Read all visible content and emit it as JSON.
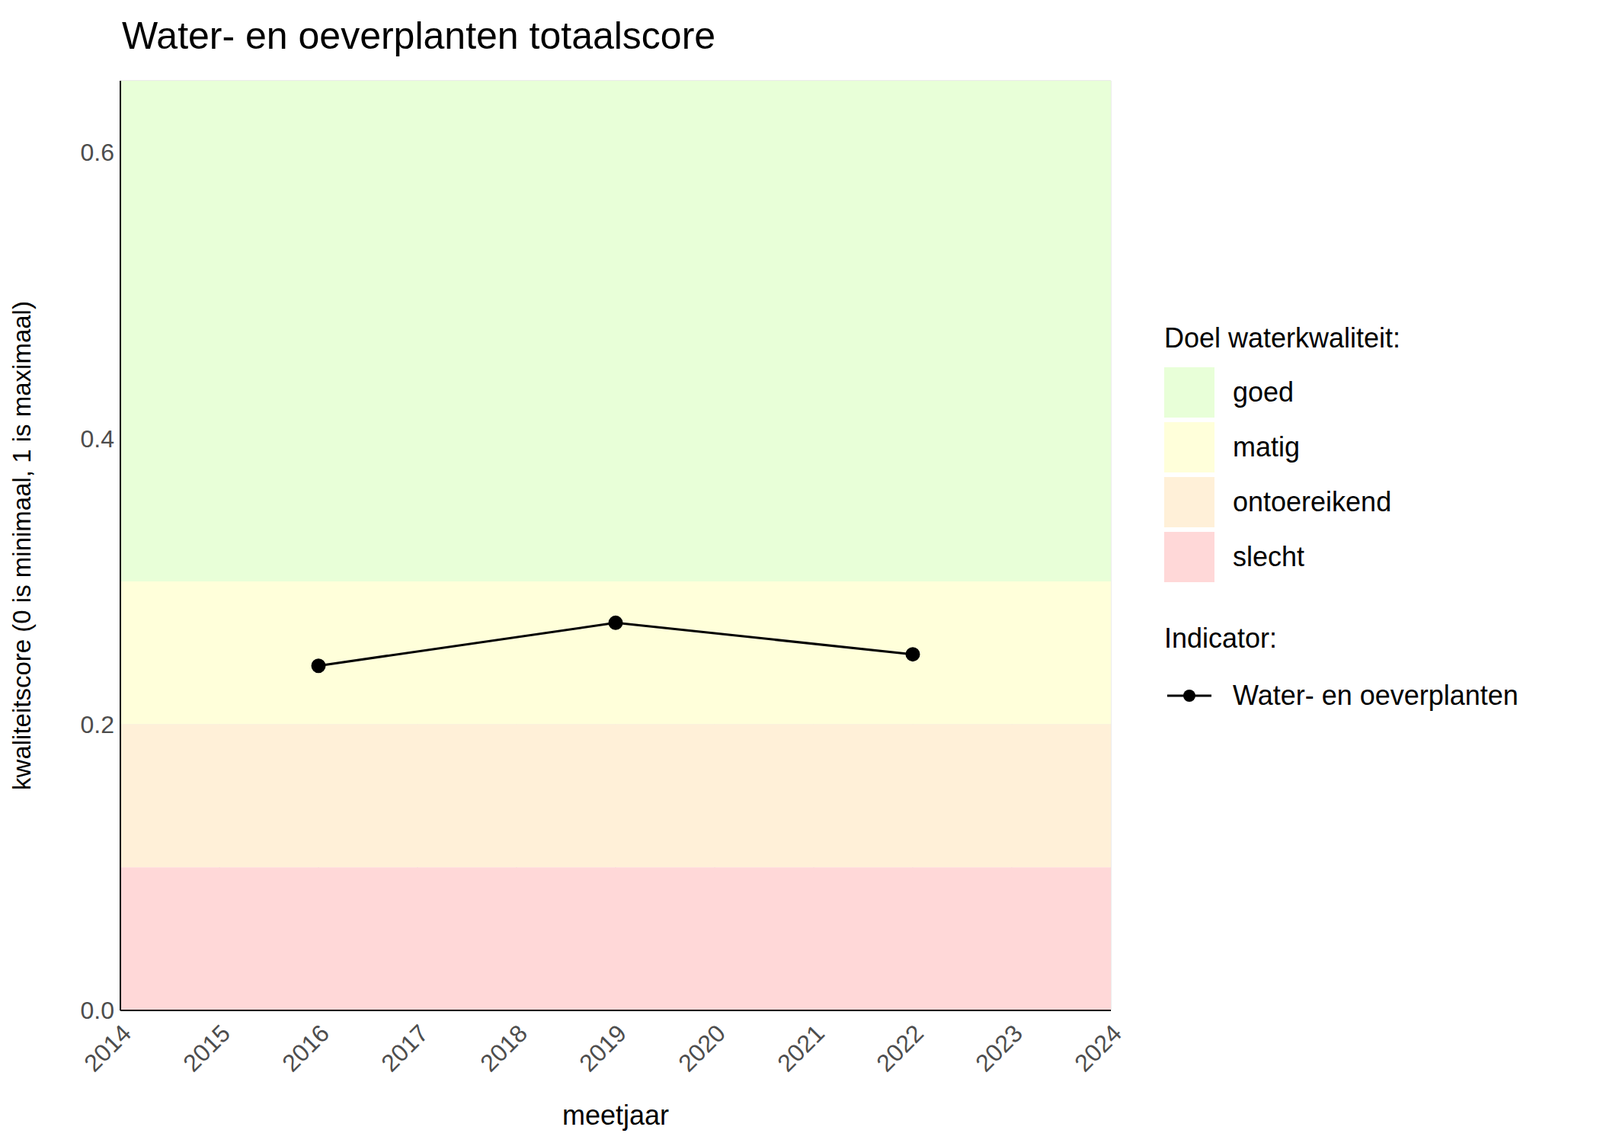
{
  "chart_data": {
    "type": "line",
    "title": "Water- en oeverplanten totaalscore",
    "x_label": "meetjaar",
    "y_label": "kwaliteitscore (0 is minimaal, 1 is maximaal)",
    "x": [
      2016,
      2019,
      2022
    ],
    "series": [
      {
        "name": "Water- en oeverplanten",
        "color": "#000000",
        "marker": "circle",
        "line_style": "solid",
        "values": [
          0.241,
          0.271,
          0.249
        ]
      }
    ],
    "xlim": [
      2014,
      2024
    ],
    "xticks": [
      2014,
      2015,
      2016,
      2017,
      2018,
      2019,
      2020,
      2021,
      2022,
      2023,
      2024
    ],
    "ylim": [
      0,
      0.65
    ],
    "yticks": [
      {
        "value": 0,
        "label": "0.0"
      },
      0.2,
      0.4,
      0.6
    ],
    "grid": true,
    "legend": "right",
    "legend_titles": {
      "bands": "Doel waterkwaliteit:",
      "series": "Indicator:"
    },
    "bands": [
      {
        "name": "goed",
        "color": "#e8ffd8",
        "from": 0.3,
        "to": 0.65
      },
      {
        "name": "matig",
        "color": "#ffffda",
        "from": 0.2,
        "to": 0.3
      },
      {
        "name": "ontoereikend",
        "color": "#fff0d8",
        "from": 0.1,
        "to": 0.2
      },
      {
        "name": "slecht",
        "color": "#ffd8d8",
        "from": 0,
        "to": 0.1
      }
    ]
  }
}
